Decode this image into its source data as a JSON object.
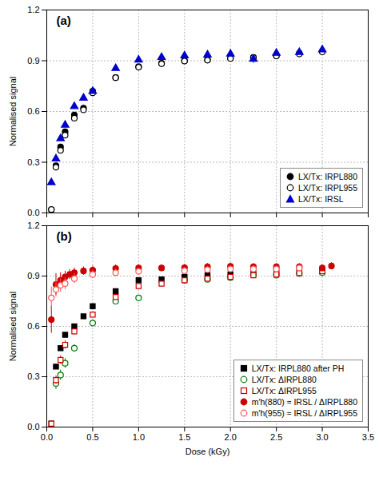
{
  "chart_data": [
    {
      "type": "scatter",
      "ylabel": "Normalised signal",
      "xlim": [
        0,
        3.5
      ],
      "ylim": [
        0,
        1.2
      ],
      "xticks": [
        0.0,
        0.5,
        1.0,
        1.5,
        2.0,
        2.5,
        3.0,
        3.5
      ],
      "yticks": [
        {
          "value": 0.0,
          "label": "0.0"
        },
        0.3,
        0.6,
        0.9,
        1.2
      ],
      "grid": true,
      "legend": "lower right",
      "tick_labels": "y",
      "annotations": [
        "(a)"
      ],
      "series": [
        {
          "name": "LX/Tx: IRPL880",
          "color": "#000000",
          "marker": "circle",
          "x": [
            0.05,
            0.1,
            0.15,
            0.2,
            0.3,
            0.4,
            0.5,
            0.75,
            1.0,
            1.25,
            1.5,
            1.75,
            2.0,
            2.25,
            2.5,
            2.75,
            3.0
          ],
          "values": [
            0.02,
            0.28,
            0.39,
            0.48,
            0.58,
            0.62,
            0.72,
            0.8,
            0.865,
            0.885,
            0.9,
            0.905,
            0.915,
            0.92,
            0.93,
            0.945,
            0.955
          ],
          "yerr": [
            0.01,
            0.015,
            0.015,
            0.015,
            0.015,
            0.015,
            0.015,
            0.012,
            0.01,
            0.01,
            0.01,
            0.01,
            0.01,
            0.01,
            0.01,
            0.01,
            0.01
          ]
        },
        {
          "name": "LX/Tx: IRPL955",
          "color": "#000000",
          "marker": "open_circle",
          "x": [
            0.05,
            0.1,
            0.15,
            0.2,
            0.3,
            0.4,
            0.5,
            0.75,
            1.0,
            1.25,
            1.5,
            1.75,
            2.0,
            2.25,
            2.5,
            2.75,
            3.0
          ],
          "values": [
            0.02,
            0.27,
            0.37,
            0.46,
            0.56,
            0.61,
            0.71,
            0.8,
            0.862,
            0.882,
            0.898,
            0.903,
            0.913,
            0.918,
            0.928,
            0.94,
            0.952
          ],
          "yerr": [
            0.01,
            0.015,
            0.015,
            0.015,
            0.015,
            0.015,
            0.015,
            0.012,
            0.01,
            0.01,
            0.01,
            0.01,
            0.01,
            0.01,
            0.01,
            0.01,
            0.01
          ]
        },
        {
          "name": "LX/Tx: IRSL",
          "color": "#0000cc",
          "marker": "triangle",
          "x": [
            0.05,
            0.1,
            0.15,
            0.2,
            0.3,
            0.4,
            0.5,
            0.75,
            1.0,
            1.25,
            1.5,
            1.75,
            2.0,
            2.25,
            2.5,
            2.75,
            3.0
          ],
          "values": [
            0.18,
            0.32,
            0.44,
            0.52,
            0.63,
            0.68,
            0.72,
            0.855,
            0.905,
            0.92,
            0.93,
            0.935,
            0.94,
            0.91,
            0.945,
            0.95,
            0.965
          ],
          "yerr": [
            0.015,
            0.015,
            0.015,
            0.015,
            0.015,
            0.015,
            0.015,
            0.012,
            0.01,
            0.01,
            0.01,
            0.01,
            0.01,
            0.025,
            0.01,
            0.01,
            0.01
          ]
        }
      ]
    },
    {
      "type": "scatter",
      "xlabel": "Dose (kGy)",
      "ylabel": "Normalised signal",
      "xlim": [
        0,
        3.5
      ],
      "ylim": [
        0,
        1.2
      ],
      "xticks": [
        {
          "value": 0.0,
          "label": "0.0"
        },
        0.5,
        {
          "value": 1.0,
          "label": "1.0"
        },
        1.5,
        {
          "value": 2.0,
          "label": "2.0"
        },
        2.5,
        {
          "value": 3.0,
          "label": "3.0"
        },
        3.5
      ],
      "yticks": [
        {
          "value": 0.0,
          "label": "0.0"
        },
        0.3,
        0.6,
        0.9,
        1.2
      ],
      "grid": true,
      "legend": "lower right",
      "annotations": [
        "(b)"
      ],
      "series": [
        {
          "name": "LX/Tx: IRPL880 after PH",
          "color": "#000000",
          "marker": "square",
          "x": [
            0.05,
            0.1,
            0.15,
            0.2,
            0.3,
            0.4,
            0.5,
            0.75,
            1.0,
            1.25,
            1.5,
            1.75,
            2.0,
            2.25,
            2.5,
            2.75,
            3.0
          ],
          "values": [
            0.02,
            0.36,
            0.47,
            0.55,
            0.6,
            0.66,
            0.72,
            0.81,
            0.875,
            0.88,
            0.895,
            0.905,
            0.91,
            0.915,
            0.925,
            0.93,
            0.935
          ],
          "yerr": [
            0.01,
            0.012,
            0.012,
            0.012,
            0.012,
            0.012,
            0.012,
            0.01,
            0.01,
            0.01,
            0.01,
            0.01,
            0.01,
            0.01,
            0.01,
            0.01,
            0.01
          ]
        },
        {
          "name": "LX/Tx: ΔIRPL880",
          "color": "#007700",
          "marker": "open_circle",
          "x": [
            0.1,
            0.15,
            0.2,
            0.3,
            0.5,
            0.75,
            1.0,
            1.5,
            1.75,
            2.0,
            2.25,
            2.5,
            2.75,
            3.0
          ],
          "values": [
            0.26,
            0.31,
            0.38,
            0.47,
            0.62,
            0.75,
            0.77,
            0.875,
            0.88,
            0.89,
            0.91,
            0.905,
            0.915,
            0.92
          ],
          "yerr": [
            0.035,
            0.03,
            0.028,
            0.022,
            0.018,
            0.015,
            0.015,
            0.012,
            0.012,
            0.012,
            0.012,
            0.012,
            0.012,
            0.012
          ]
        },
        {
          "name": "LX/Tx: ΔIRPL955",
          "color": "#cc0000",
          "marker": "open_square",
          "x": [
            0.05,
            0.1,
            0.15,
            0.2,
            0.3,
            0.5,
            0.75,
            1.0,
            1.25,
            1.5,
            1.75,
            2.0,
            2.25,
            2.5,
            2.75,
            3.0
          ],
          "values": [
            0.02,
            0.28,
            0.4,
            0.49,
            0.57,
            0.67,
            0.775,
            0.84,
            0.855,
            0.875,
            0.885,
            0.895,
            0.905,
            0.91,
            0.918,
            0.928
          ],
          "yerr": [
            0.018,
            0.025,
            0.025,
            0.025,
            0.02,
            0.018,
            0.015,
            0.012,
            0.012,
            0.012,
            0.012,
            0.012,
            0.012,
            0.012,
            0.012,
            0.012
          ]
        },
        {
          "name": "m′h(880) ≈ IRSL / ΔIRPL880",
          "color": "#cc0000",
          "marker": "circle",
          "x": [
            0.05,
            0.1,
            0.15,
            0.2,
            0.25,
            0.3,
            0.4,
            0.5,
            0.75,
            1.0,
            1.25,
            1.5,
            1.75,
            2.0,
            2.25,
            2.5,
            2.75,
            3.0,
            3.1
          ],
          "values": [
            0.64,
            0.85,
            0.875,
            0.895,
            0.91,
            0.92,
            0.93,
            0.935,
            0.945,
            0.948,
            0.948,
            0.95,
            0.955,
            0.958,
            0.955,
            0.955,
            0.955,
            0.948,
            0.96
          ],
          "yerr": [
            0.08,
            0.065,
            0.045,
            0.035,
            0.03,
            0.028,
            0.025,
            0.025,
            0.022,
            0.02,
            0.02,
            0.02,
            0.02,
            0.02,
            0.02,
            0.02,
            0.02,
            0.02,
            0.02
          ]
        },
        {
          "name": "m′h(955) ≈ IRSL / ΔIRPL955",
          "color": "#ff5555",
          "marker": "open_circle",
          "x": [
            0.05,
            0.1,
            0.15,
            0.2,
            0.3,
            0.5,
            0.75,
            1.0,
            1.5,
            1.75,
            2.0,
            2.25,
            2.5,
            2.75
          ],
          "values": [
            0.77,
            0.82,
            0.845,
            0.855,
            0.885,
            0.91,
            0.92,
            0.928,
            0.932,
            0.938,
            0.942,
            0.942,
            0.942,
            0.948
          ],
          "yerr": [
            0.065,
            0.045,
            0.04,
            0.035,
            0.03,
            0.025,
            0.022,
            0.02,
            0.02,
            0.02,
            0.02,
            0.02,
            0.02,
            0.02
          ]
        }
      ]
    }
  ]
}
